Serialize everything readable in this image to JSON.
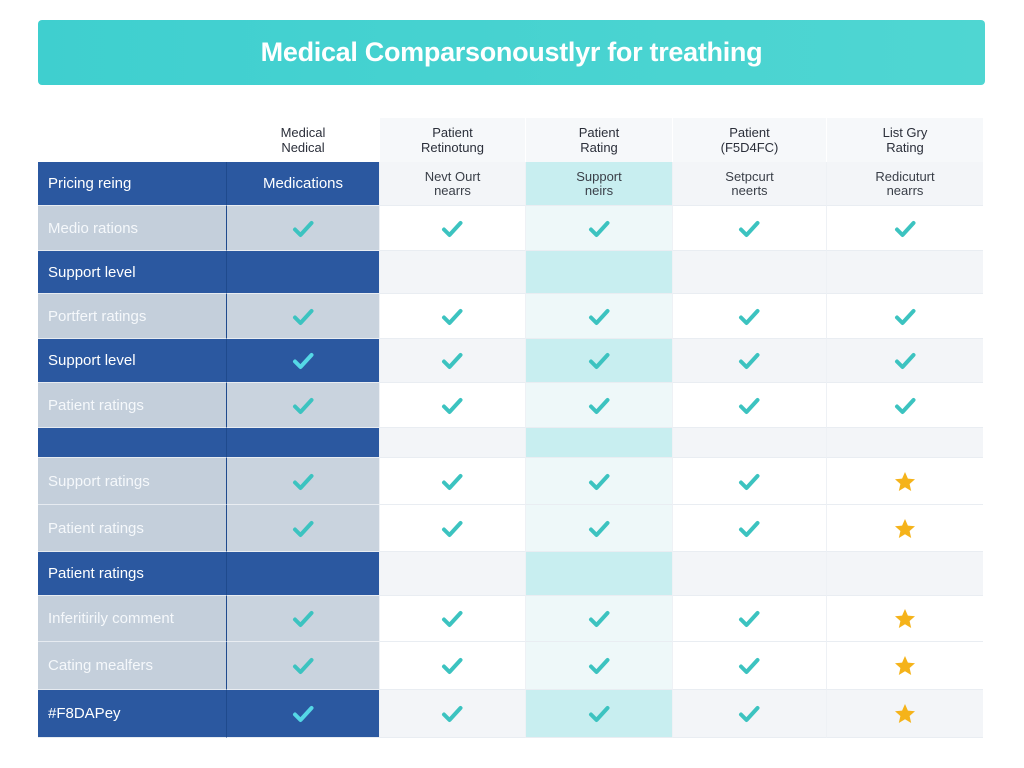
{
  "header": {
    "title": "Medical Comparsonoustlyr for treathing"
  },
  "table": {
    "columns": [
      [
        "Medical",
        "Nedical"
      ],
      [
        "Patient",
        "Retinotung"
      ],
      [
        "Patient",
        "Rating"
      ],
      [
        "Patient",
        "(F5D4FC)"
      ],
      [
        "List Gry",
        "Rating"
      ]
    ],
    "rows": [
      {
        "label": "Pricing reing",
        "cells": [
          [
            "Medications"
          ],
          [
            "Nevt Ourt",
            "nearrs"
          ],
          [
            "Support",
            "neirs"
          ],
          [
            "Setpcurt",
            "neerts"
          ],
          [
            "Redicuturt",
            "nearrs"
          ]
        ]
      },
      {
        "label": "Medio rations"
      },
      {
        "label": "Support level"
      },
      {
        "label": "Portfert ratings"
      },
      {
        "label": "Support level"
      },
      {
        "label": "Patient ratings"
      },
      {},
      {
        "label": "Support ratings"
      },
      {
        "label": "Patient ratings"
      },
      {
        "label": "Patient ratings"
      },
      {
        "label": "Inferitirily comment"
      },
      {
        "label": "Cating mealfers"
      },
      {
        "label": "#F8DAPey"
      }
    ]
  }
}
